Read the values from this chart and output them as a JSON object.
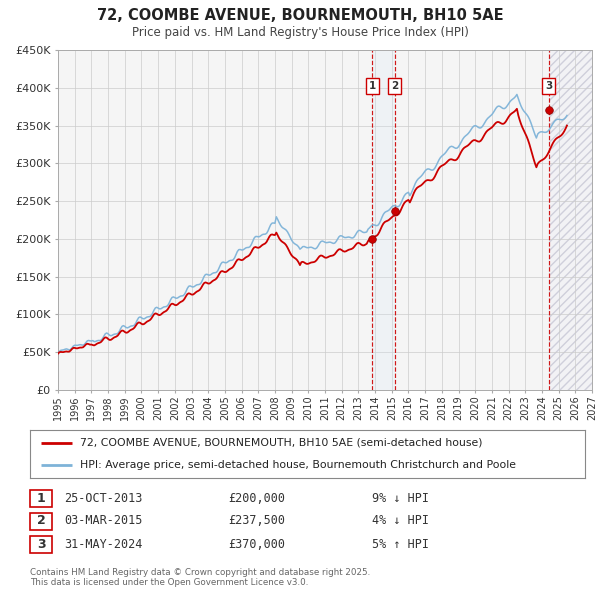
{
  "title": "72, COOMBE AVENUE, BOURNEMOUTH, BH10 5AE",
  "subtitle": "Price paid vs. HM Land Registry's House Price Index (HPI)",
  "legend_line1": "72, COOMBE AVENUE, BOURNEMOUTH, BH10 5AE (semi-detached house)",
  "legend_line2": "HPI: Average price, semi-detached house, Bournemouth Christchurch and Poole",
  "transactions": [
    {
      "num": 1,
      "date": "25-OCT-2013",
      "price": 200000,
      "hpi_diff": "9%",
      "direction": "down"
    },
    {
      "num": 2,
      "date": "03-MAR-2015",
      "price": 237500,
      "hpi_diff": "4%",
      "direction": "down"
    },
    {
      "num": 3,
      "date": "31-MAY-2024",
      "price": 370000,
      "hpi_diff": "5%",
      "direction": "up"
    }
  ],
  "transaction_dates_decimal": [
    2013.82,
    2015.17,
    2024.42
  ],
  "transaction_prices": [
    200000,
    237500,
    370000
  ],
  "hpi_line_color": "#7eb3d8",
  "price_line_color": "#cc0000",
  "dot_color": "#cc0000",
  "vline_color": "#cc0000",
  "vband_color": "#d6e8f5",
  "grid_color": "#cccccc",
  "background_color": "#ffffff",
  "plot_bg_color": "#f5f5f5",
  "xmin": 1995,
  "xmax": 2027,
  "ymin": 0,
  "ymax": 450000,
  "yticks": [
    0,
    50000,
    100000,
    150000,
    200000,
    250000,
    300000,
    350000,
    400000,
    450000
  ],
  "ytick_labels": [
    "£0",
    "£50K",
    "£100K",
    "£150K",
    "£200K",
    "£250K",
    "£300K",
    "£350K",
    "£400K",
    "£450K"
  ],
  "footnote": "Contains HM Land Registry data © Crown copyright and database right 2025.\nThis data is licensed under the Open Government Licence v3.0."
}
